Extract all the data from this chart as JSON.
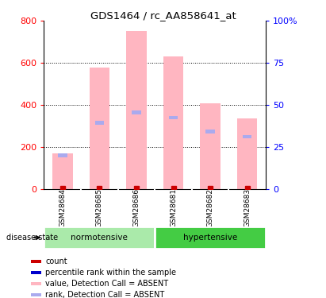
{
  "title": "GDS1464 / rc_AA858641_at",
  "samples": [
    "GSM28684",
    "GSM28685",
    "GSM28686",
    "GSM28681",
    "GSM28682",
    "GSM28683"
  ],
  "bar_values": [
    170,
    580,
    750,
    630,
    410,
    335
  ],
  "rank_values": [
    160,
    315,
    365,
    340,
    275,
    250
  ],
  "left_ylim": [
    0,
    800
  ],
  "right_ylim": [
    0,
    100
  ],
  "left_yticks": [
    0,
    200,
    400,
    600,
    800
  ],
  "right_yticks": [
    0,
    25,
    50,
    75,
    100
  ],
  "left_ytick_labels": [
    "0",
    "200",
    "400",
    "600",
    "800"
  ],
  "right_ytick_labels": [
    "0",
    "25",
    "50",
    "75",
    "100%"
  ],
  "grid_lines": [
    200,
    400,
    600
  ],
  "bar_color": "#FFB6C1",
  "rank_color": "#AAAAEE",
  "count_color": "#CC0000",
  "normotensive_color": "#AAEEA A",
  "hypertensive_color": "#44CC44",
  "sample_bg_color": "#C8C8C8",
  "legend_colors": [
    "#CC0000",
    "#0000CC",
    "#FFB6C1",
    "#AAAAEE"
  ],
  "legend_labels": [
    "count",
    "percentile rank within the sample",
    "value, Detection Call = ABSENT",
    "rank, Detection Call = ABSENT"
  ]
}
